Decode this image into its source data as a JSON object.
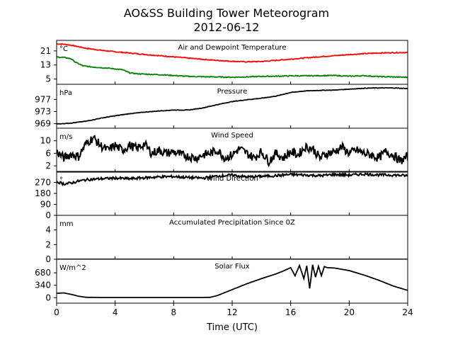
{
  "figure": {
    "title_line1": "AO&SS Building Tower Meteorogram",
    "title_line2": "2012-06-12",
    "xlabel": "Time (UTC)"
  },
  "chart_data": [
    {
      "type": "line",
      "title": "Air and Dewpoint Temperature",
      "units": "°C",
      "xlim": [
        0,
        24
      ],
      "ylim": [
        2,
        27
      ],
      "yticks": [
        5,
        13,
        21
      ],
      "series": [
        {
          "color": "#ff0000",
          "x": [
            0,
            0.5,
            1,
            1.5,
            2,
            3,
            4,
            5,
            6,
            7,
            8,
            9,
            10,
            11,
            12,
            13,
            14,
            15,
            16,
            17,
            18,
            19,
            20,
            21,
            22,
            23,
            24
          ],
          "y": [
            25,
            24.8,
            24.2,
            23.4,
            22.5,
            21.4,
            20.5,
            19.8,
            19,
            18.3,
            17.6,
            16.9,
            16.2,
            15.6,
            15.1,
            14.8,
            15.0,
            15.6,
            16.3,
            17.0,
            17.7,
            18.3,
            18.9,
            19.4,
            19.8,
            20.0,
            20.1
          ]
        },
        {
          "color": "#008000",
          "x": [
            0,
            0.5,
            1,
            1.3,
            1.8,
            2.5,
            3.5,
            4.5,
            5,
            5.5,
            6,
            7,
            8,
            9,
            10,
            11,
            12,
            13,
            14,
            15,
            16,
            17,
            18,
            19,
            20,
            21,
            22,
            23,
            24
          ],
          "y": [
            17.5,
            17.3,
            16.5,
            14.5,
            12.5,
            11.8,
            11.2,
            10.3,
            8.5,
            8.0,
            7.8,
            7.5,
            7.0,
            6.5,
            6.3,
            6.2,
            6.0,
            6.2,
            6.5,
            6.6,
            6.8,
            6.8,
            6.9,
            7.0,
            6.6,
            6.9,
            6.4,
            6.2,
            6.0
          ]
        }
      ]
    },
    {
      "type": "line",
      "title": "Pressure",
      "units": "hPa",
      "xlim": [
        0,
        24
      ],
      "ylim": [
        967.5,
        982
      ],
      "yticks": [
        969,
        973,
        977
      ],
      "series": [
        {
          "color": "#000000",
          "x": [
            0,
            1,
            2,
            3,
            4,
            5,
            6,
            7,
            8,
            9,
            10,
            11,
            12,
            13,
            14,
            15,
            16,
            17,
            18,
            19,
            20,
            21,
            22,
            23,
            24
          ],
          "y": [
            968.9,
            969.2,
            969.8,
            970.8,
            971.6,
            972.3,
            972.8,
            973.2,
            973.5,
            973.5,
            974.2,
            975.3,
            976.3,
            976.9,
            977.4,
            978.1,
            979.3,
            979.8,
            980.0,
            980.1,
            980.4,
            980.7,
            980.8,
            980.8,
            980.6
          ]
        }
      ]
    },
    {
      "type": "line",
      "title": "Wind Speed",
      "units": "m/s",
      "xlim": [
        0,
        24
      ],
      "ylim": [
        0,
        14
      ],
      "yticks": [
        2,
        6,
        10
      ],
      "series": [
        {
          "color": "#000000",
          "x": [
            0,
            0.5,
            1,
            1.5,
            2,
            2.5,
            3,
            3.5,
            4,
            4.5,
            5,
            5.5,
            6,
            6.5,
            7,
            7.5,
            8,
            8.5,
            9,
            9.5,
            10,
            10.5,
            11,
            11.5,
            12,
            12.5,
            13,
            13.5,
            14,
            14.5,
            15,
            15.5,
            16,
            16.5,
            17,
            17.5,
            18,
            18.5,
            19,
            19.5,
            20,
            20.5,
            21,
            21.5,
            22,
            22.5,
            23,
            23.5,
            24
          ],
          "y": [
            6.5,
            4.5,
            5.8,
            5.0,
            9.0,
            11.0,
            8.5,
            7.0,
            8.5,
            7.0,
            8.5,
            7.5,
            9.0,
            6.0,
            7.0,
            6.0,
            6.5,
            5.5,
            5.0,
            4.5,
            5.5,
            6.0,
            7.0,
            4.5,
            5.5,
            7.5,
            6.0,
            4.5,
            6.5,
            3.5,
            6.0,
            4.5,
            6.5,
            5.5,
            8.0,
            7.5,
            4.5,
            6.0,
            6.5,
            8.0,
            6.0,
            7.0,
            6.0,
            5.5,
            4.5,
            6.5,
            5.5,
            3.5,
            5.0
          ]
        }
      ]
    },
    {
      "type": "line",
      "title": "Wind Direction",
      "units": "°",
      "xlim": [
        0,
        24
      ],
      "ylim": [
        0,
        360
      ],
      "yticks": [
        0,
        90,
        180,
        270
      ],
      "series": [
        {
          "color": "#000000",
          "x": [
            0,
            0.5,
            1,
            1.5,
            2,
            3,
            4,
            5,
            6,
            7,
            8,
            9,
            10,
            11,
            12,
            13,
            14,
            15,
            16,
            17,
            18,
            19,
            20,
            21,
            22,
            23,
            24
          ],
          "y": [
            275,
            258,
            265,
            280,
            292,
            300,
            305,
            300,
            308,
            315,
            318,
            310,
            305,
            322,
            330,
            315,
            320,
            325,
            335,
            330,
            325,
            335,
            330,
            338,
            332,
            330,
            325
          ]
        }
      ]
    },
    {
      "type": "line",
      "title": "Accumulated Precipitation Since 0Z",
      "units": "mm",
      "xlim": [
        0,
        24
      ],
      "ylim": [
        0,
        6
      ],
      "yticks": [
        0,
        2,
        4
      ],
      "series": [
        {
          "color": "#000000",
          "x": [
            0,
            24
          ],
          "y": [
            0,
            0
          ]
        }
      ]
    },
    {
      "type": "line",
      "title": "Solar Flux",
      "units": "W/m^2",
      "xlim": [
        0,
        24
      ],
      "ylim": [
        -150,
        1050
      ],
      "yticks": [
        0,
        340,
        680
      ],
      "series": [
        {
          "color": "#000000",
          "x": [
            0,
            0.5,
            1,
            1.5,
            2,
            3,
            4,
            5,
            6,
            7,
            8,
            9,
            10,
            10.5,
            11,
            12,
            13,
            14,
            15,
            15.5,
            16,
            16.3,
            16.6,
            16.9,
            17.1,
            17.3,
            17.5,
            17.7,
            17.9,
            18.1,
            18.3,
            18.5,
            19,
            20,
            21,
            22,
            23,
            24
          ],
          "y": [
            120,
            130,
            90,
            40,
            10,
            5,
            5,
            5,
            5,
            5,
            5,
            5,
            5,
            10,
            60,
            220,
            380,
            520,
            650,
            730,
            820,
            600,
            880,
            520,
            870,
            250,
            900,
            560,
            860,
            600,
            850,
            820,
            810,
            740,
            620,
            480,
            320,
            200
          ]
        }
      ]
    }
  ],
  "xticks": [
    0,
    4,
    8,
    12,
    16,
    20,
    24
  ]
}
